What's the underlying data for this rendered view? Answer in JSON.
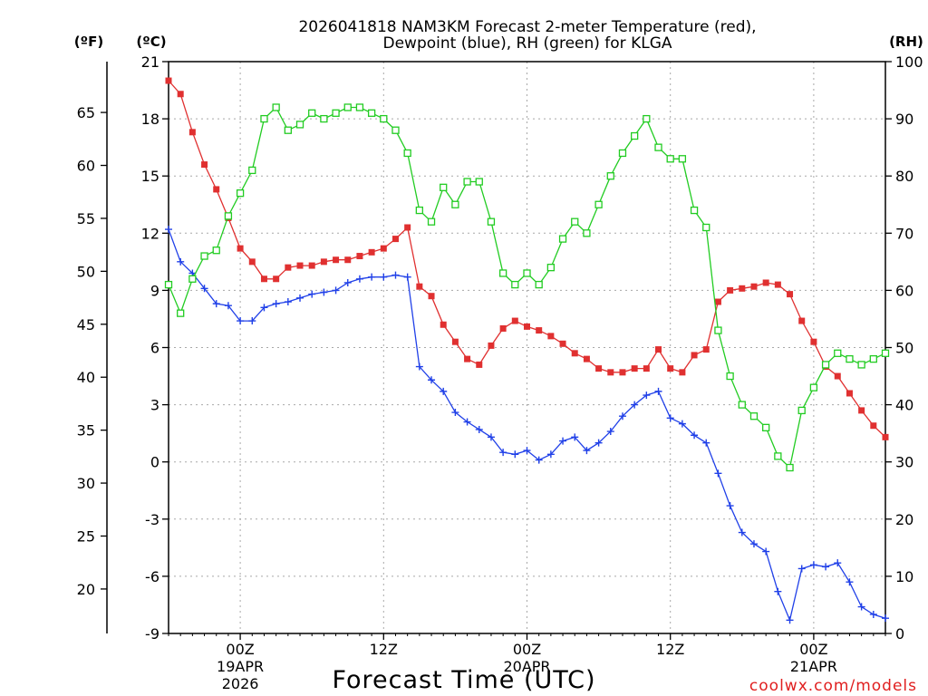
{
  "chart_data": {
    "type": "line",
    "title_line1": "2026041818 NAM3KM Forecast 2-meter Temperature (red),",
    "title_line2": "Dewpoint (blue), RH (green) for KLGA",
    "xlabel": "Forecast Time (UTC)",
    "units": {
      "fahrenheit": "(ºF)",
      "celsius": "(ºC)",
      "rh": "(RH)"
    },
    "credit": "coolwx.com/models",
    "x_range_hours": [
      0,
      60
    ],
    "ylim_celsius": [
      -9,
      21
    ],
    "ylim_rh": [
      0,
      100
    ],
    "ylim_fahrenheit": [
      15.8,
      69.8
    ],
    "celsius_ticks": [
      "21",
      "18",
      "15",
      "12",
      "9",
      "6",
      "3",
      "0",
      "-3",
      "-6",
      "-9"
    ],
    "celsius_tick_values": [
      21,
      18,
      15,
      12,
      9,
      6,
      3,
      0,
      -3,
      -6,
      -9
    ],
    "fahrenheit_ticks": [
      "65",
      "60",
      "55",
      "50",
      "45",
      "40",
      "35",
      "30",
      "25",
      "20"
    ],
    "fahrenheit_tick_values": [
      65,
      60,
      55,
      50,
      45,
      40,
      35,
      30,
      25,
      20
    ],
    "rh_ticks": [
      "100",
      "90",
      "80",
      "70",
      "60",
      "50",
      "40",
      "30",
      "20",
      "10",
      "0"
    ],
    "rh_tick_values": [
      100,
      90,
      80,
      70,
      60,
      50,
      40,
      30,
      20,
      10,
      0
    ],
    "x_ticks": [
      {
        "hour": 6,
        "label": "00Z",
        "date": "19APR",
        "year": "2026"
      },
      {
        "hour": 18,
        "label": "12Z",
        "date": "",
        "year": ""
      },
      {
        "hour": 30,
        "label": "00Z",
        "date": "20APR",
        "year": ""
      },
      {
        "hour": 42,
        "label": "12Z",
        "date": "",
        "year": ""
      },
      {
        "hour": 54,
        "label": "00Z",
        "date": "21APR",
        "year": ""
      }
    ],
    "hours": [
      0,
      1,
      2,
      3,
      4,
      5,
      6,
      7,
      8,
      9,
      10,
      11,
      12,
      13,
      14,
      15,
      16,
      17,
      18,
      19,
      20,
      21,
      22,
      23,
      24,
      25,
      26,
      27,
      28,
      29,
      30,
      31,
      32,
      33,
      34,
      35,
      36,
      37,
      38,
      39,
      40,
      41,
      42,
      43,
      44,
      45,
      46,
      47,
      48,
      49,
      50,
      51,
      52,
      53,
      54,
      55,
      56,
      57,
      58,
      59,
      60
    ],
    "series": [
      {
        "name": "Temperature",
        "color": "#e03030",
        "axis": "celsius",
        "marker": "filled-square",
        "values": [
          20.0,
          19.3,
          17.3,
          15.6,
          14.3,
          12.8,
          11.2,
          10.5,
          9.6,
          9.6,
          10.2,
          10.3,
          10.3,
          10.5,
          10.6,
          10.6,
          10.8,
          11.0,
          11.2,
          11.7,
          12.3,
          9.2,
          8.7,
          7.2,
          6.3,
          5.4,
          5.1,
          6.1,
          7.0,
          7.4,
          7.1,
          6.9,
          6.6,
          6.2,
          5.7,
          5.4,
          4.9,
          4.7,
          4.7,
          4.9,
          4.9,
          5.9,
          4.9,
          4.7,
          5.6,
          5.9,
          8.4,
          9.0,
          9.1,
          9.2,
          9.4,
          9.3,
          8.8,
          7.4,
          6.3,
          5.0,
          4.5,
          3.6,
          2.7,
          1.9,
          1.3
        ]
      },
      {
        "name": "Dewpoint",
        "color": "#2040e8",
        "axis": "celsius",
        "marker": "plus",
        "values": [
          12.2,
          10.5,
          9.9,
          9.1,
          8.3,
          8.2,
          7.4,
          7.4,
          8.1,
          8.3,
          8.4,
          8.6,
          8.8,
          8.9,
          9.0,
          9.4,
          9.6,
          9.7,
          9.7,
          9.8,
          9.7,
          5.0,
          4.3,
          3.7,
          2.6,
          2.1,
          1.7,
          1.3,
          0.5,
          0.4,
          0.6,
          0.1,
          0.4,
          1.1,
          1.3,
          0.6,
          1.0,
          1.6,
          2.4,
          3.0,
          3.5,
          3.7,
          2.3,
          2.0,
          1.4,
          1.0,
          -0.6,
          -2.3,
          -3.7,
          -4.3,
          -4.7,
          -6.8,
          -8.3,
          -5.6,
          -5.4,
          -5.5,
          -5.3,
          -6.3,
          -7.6,
          -8.0,
          -8.2
        ]
      },
      {
        "name": "RH",
        "color": "#22cc22",
        "axis": "rh",
        "marker": "open-square",
        "values": [
          61,
          56,
          62,
          66,
          67,
          73,
          77,
          81,
          90,
          92,
          88,
          89,
          91,
          90,
          91,
          92,
          92,
          91,
          90,
          88,
          84,
          74,
          72,
          78,
          75,
          79,
          79,
          72,
          63,
          61,
          63,
          61,
          64,
          69,
          72,
          70,
          75,
          80,
          84,
          87,
          90,
          85,
          83,
          83,
          74,
          71,
          53,
          45,
          40,
          38,
          36,
          31,
          29,
          39,
          43,
          47,
          49,
          48,
          47,
          48,
          49
        ]
      }
    ]
  }
}
